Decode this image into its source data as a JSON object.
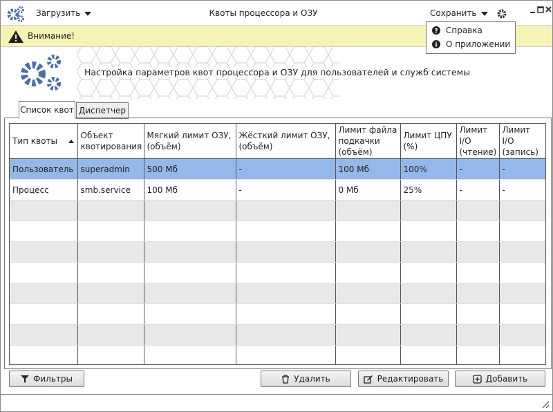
{
  "toolbar": {
    "load": "Загрузить",
    "title": "Квоты процессора и ОЗУ",
    "save": "Сохранить"
  },
  "menu": {
    "items": [
      "Справка",
      "О приложении"
    ]
  },
  "warning": "Внимание!",
  "header": {
    "text": "Настройка параметров квот процессора и ОЗУ для пользователей и служб системы"
  },
  "tabs": [
    "Список квот",
    "Диспетчер"
  ],
  "table": {
    "columns": [
      "Тип квоты",
      "Объект квотирования",
      "Мягкий лимит ОЗУ, (объём)",
      "Жёсткий лимит ОЗУ, (объём)",
      "Лимит файла подкачки (объём)",
      "Лимит ЦПУ (%)",
      "Лимит I/O (чтение)",
      "Лимит I/O (запись)"
    ],
    "rows": [
      [
        "Пользователь",
        "superadmin",
        "500 Мб",
        "-",
        "100 Мб",
        "100%",
        "-",
        "-"
      ],
      [
        "Процесс",
        "smb.service",
        "100 Мб",
        "-",
        "0 Мб",
        "25%",
        "-",
        "-"
      ]
    ]
  },
  "buttons": {
    "filters": "Фильтры",
    "delete": "Удалить",
    "edit": "Редактировать",
    "add": "Добавить"
  }
}
